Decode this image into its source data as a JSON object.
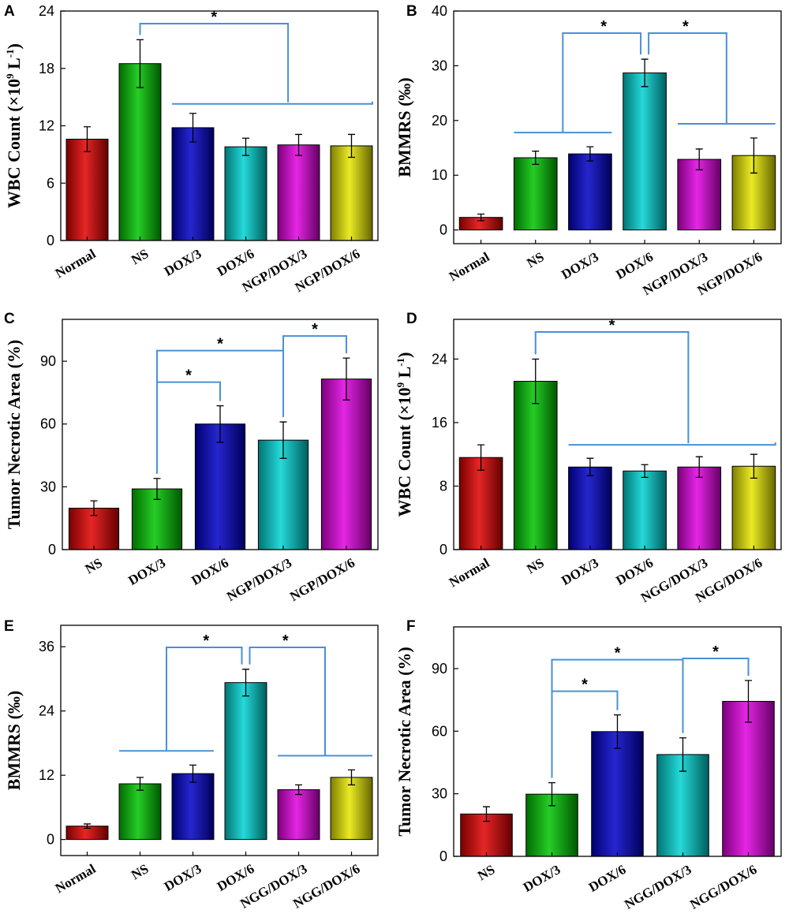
{
  "colors": {
    "red": "#e00000",
    "green": "#00c400",
    "blue": "#0000c8",
    "cyan": "#00d2d2",
    "magenta": "#e000e0",
    "yellow": "#e6e600",
    "bracket": "#4a90d9"
  },
  "chart_data": [
    {
      "type": "bar",
      "panel": "A",
      "title": "",
      "xlabel": "",
      "ylabel": "WBC Count (×10⁹ L⁻¹)",
      "ylabel_parts": [
        "WBC Count (×10",
        "9",
        " L",
        "-1",
        ")"
      ],
      "ylim": [
        0,
        24
      ],
      "yticks": [
        "0",
        "6",
        "12",
        "18",
        "24"
      ],
      "ytick_values": [
        0,
        6,
        12,
        18,
        24
      ],
      "categories": [
        "Normal",
        "NS",
        "DOX/3",
        "DOX/6",
        "NGP/DOX/3",
        "NGP/DOX/6"
      ],
      "values": [
        10.6,
        18.5,
        11.8,
        9.8,
        10.0,
        9.9
      ],
      "errors": [
        1.3,
        2.5,
        1.5,
        0.9,
        1.1,
        1.2
      ],
      "colors": [
        "red",
        "green",
        "blue",
        "cyan",
        "magenta",
        "yellow"
      ],
      "significance": [
        {
          "from": 1,
          "to": [
            2,
            5
          ],
          "label": "*"
        }
      ]
    },
    {
      "type": "bar",
      "panel": "B",
      "title": "",
      "xlabel": "",
      "ylabel": "BMMRS (‰)",
      "ylim": [
        -2.5,
        40
      ],
      "yticks": [
        "0",
        "10",
        "20",
        "30",
        "40"
      ],
      "ytick_values": [
        0,
        10,
        20,
        30,
        40
      ],
      "categories": [
        "Normal",
        "NS",
        "DOX/3",
        "DOX/6",
        "NGP/DOX/3",
        "NGP/DOX/6"
      ],
      "values": [
        2.3,
        13.2,
        13.9,
        28.7,
        12.9,
        13.6
      ],
      "errors": [
        0.6,
        1.2,
        1.3,
        2.5,
        1.9,
        3.2
      ],
      "colors": [
        "red",
        "green",
        "blue",
        "cyan",
        "magenta",
        "yellow"
      ],
      "significance": [
        {
          "from": [
            1,
            2
          ],
          "to": 3,
          "label": "*"
        },
        {
          "from": 3,
          "to": [
            4,
            5
          ],
          "label": "*"
        }
      ]
    },
    {
      "type": "bar",
      "panel": "C",
      "title": "",
      "xlabel": "",
      "ylabel": "Tumor Necrotic Area (%)",
      "ylim": [
        0,
        110
      ],
      "yticks": [
        "0",
        "30",
        "60",
        "90"
      ],
      "ytick_values": [
        0,
        30,
        60,
        90
      ],
      "categories": [
        "NS",
        "DOX/3",
        "DOX/6",
        "NGP/DOX/3",
        "NGP/DOX/6"
      ],
      "values": [
        19.8,
        29.0,
        60.0,
        52.3,
        81.5
      ],
      "errors": [
        3.5,
        5.0,
        8.7,
        8.7,
        10.0
      ],
      "colors": [
        "red",
        "green",
        "blue",
        "cyan",
        "magenta"
      ],
      "significance": [
        {
          "from": 1,
          "to": 2,
          "label": "*"
        },
        {
          "from": 1,
          "to": 3,
          "label": "*"
        },
        {
          "from": 3,
          "to": 4,
          "label": "*"
        }
      ]
    },
    {
      "type": "bar",
      "panel": "D",
      "title": "",
      "xlabel": "",
      "ylabel": "WBC Count (×10⁹ L⁻¹)",
      "ylabel_parts": [
        "WBC Count (×10",
        "9",
        " L",
        "-1",
        ")"
      ],
      "ylim": [
        0,
        29
      ],
      "yticks": [
        "0",
        "8",
        "16",
        "24"
      ],
      "ytick_values": [
        0,
        8,
        16,
        24
      ],
      "categories": [
        "Normal",
        "NS",
        "DOX/3",
        "DOX/6",
        "NGG/DOX/3",
        "NGG/DOX/6"
      ],
      "values": [
        11.6,
        21.2,
        10.4,
        9.9,
        10.4,
        10.5
      ],
      "errors": [
        1.6,
        2.8,
        1.1,
        0.8,
        1.3,
        1.5
      ],
      "colors": [
        "red",
        "green",
        "blue",
        "cyan",
        "magenta",
        "yellow"
      ],
      "significance": [
        {
          "from": 1,
          "to": [
            2,
            5
          ],
          "label": "*"
        }
      ]
    },
    {
      "type": "bar",
      "panel": "E",
      "title": "",
      "xlabel": "",
      "ylabel": "BMMRS (‰)",
      "ylim": [
        -3,
        40
      ],
      "yticks": [
        "0",
        "12",
        "24",
        "36"
      ],
      "ytick_values": [
        0,
        12,
        24,
        36
      ],
      "categories": [
        "Normal",
        "NS",
        "DOX/3",
        "DOX/6",
        "NGG/DOX/3",
        "NGG/DOX/6"
      ],
      "values": [
        2.5,
        10.4,
        12.3,
        29.3,
        9.3,
        11.6
      ],
      "errors": [
        0.4,
        1.2,
        1.6,
        2.5,
        0.9,
        1.4
      ],
      "colors": [
        "red",
        "green",
        "blue",
        "cyan",
        "magenta",
        "yellow"
      ],
      "significance": [
        {
          "from": [
            1,
            2
          ],
          "to": 3,
          "label": "*"
        },
        {
          "from": 3,
          "to": [
            4,
            5
          ],
          "label": "*"
        }
      ]
    },
    {
      "type": "bar",
      "panel": "F",
      "title": "",
      "xlabel": "",
      "ylabel": "Tumor Necrotic Area (%)",
      "ylim": [
        0,
        110
      ],
      "yticks": [
        "0",
        "30",
        "60",
        "90"
      ],
      "ytick_values": [
        0,
        30,
        60,
        90
      ],
      "categories": [
        "NS",
        "DOX/3",
        "DOX/6",
        "NGG/DOX/3",
        "NGG/DOX/6"
      ],
      "values": [
        20.3,
        29.8,
        59.8,
        48.8,
        74.3
      ],
      "errors": [
        3.5,
        5.5,
        8.0,
        8.0,
        10.0
      ],
      "colors": [
        "red",
        "green",
        "blue",
        "cyan",
        "magenta"
      ],
      "significance": [
        {
          "from": 1,
          "to": 2,
          "label": "*"
        },
        {
          "from": 1,
          "to": 3,
          "label": "*"
        },
        {
          "from": 3,
          "to": 4,
          "label": "*"
        }
      ]
    }
  ]
}
